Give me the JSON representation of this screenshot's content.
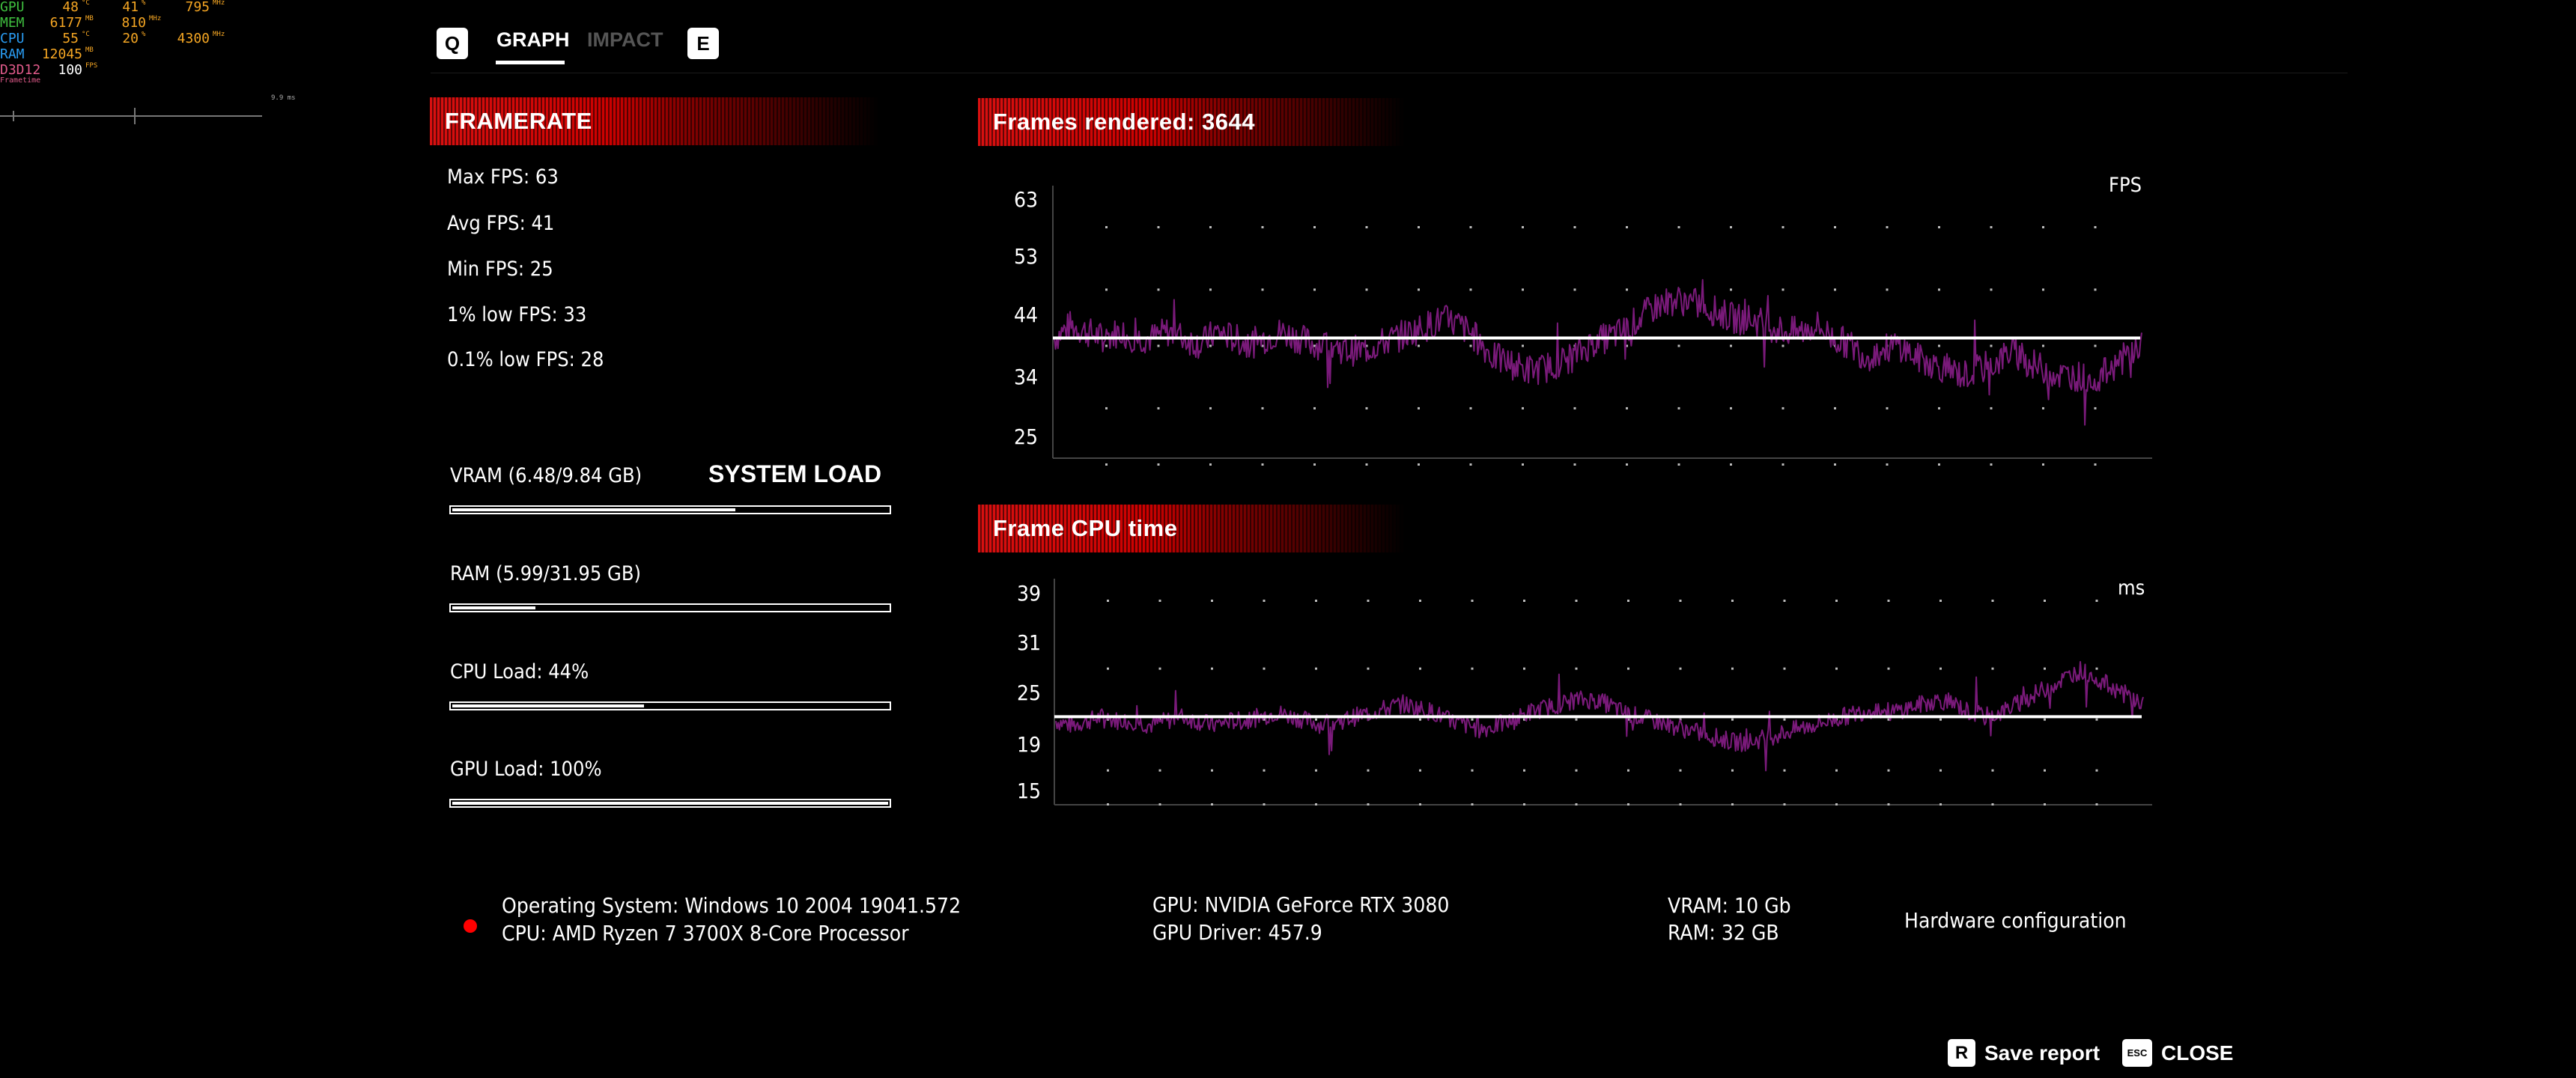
{
  "overlay": {
    "rows": [
      {
        "label": "GPU",
        "label_color": "#3fbf3f",
        "values": [
          {
            "v": "48",
            "u": "°C"
          },
          {
            "v": "41",
            "u": "%"
          },
          {
            "v": "795",
            "u": "MHz"
          }
        ]
      },
      {
        "label": "MEM",
        "label_color": "#3fbf3f",
        "values": [
          {
            "v": "6177",
            "u": "MB"
          },
          {
            "v": "810",
            "u": "MHz"
          }
        ]
      },
      {
        "label": "CPU",
        "label_color": "#2a9df4",
        "values": [
          {
            "v": "55",
            "u": "°C"
          },
          {
            "v": "20",
            "u": "%"
          },
          {
            "v": "4300",
            "u": "MHz"
          }
        ]
      },
      {
        "label": "RAM",
        "label_color": "#2a9df4",
        "values": [
          {
            "v": "12045",
            "u": "MB"
          }
        ]
      },
      {
        "label": "D3D12",
        "label_color": "#e05a8a",
        "values": [
          {
            "v": "100",
            "u": "FPS"
          }
        ]
      }
    ],
    "frametime_label": "Frametime",
    "frametime_value": "9.9 ms"
  },
  "tabs": {
    "left_key": "Q",
    "items": [
      {
        "label": "GRAPH",
        "active": true
      },
      {
        "label": "IMPACT",
        "active": false
      }
    ],
    "right_key": "E"
  },
  "framerate": {
    "title": "FRAMERATE",
    "max": "Max FPS: 63",
    "avg": "Avg FPS: 41",
    "min": "Min FPS: 25",
    "low1": "1% low FPS: 33",
    "low01": "0.1% low FPS: 28"
  },
  "system_load": {
    "title": "SYSTEM LOAD",
    "items": [
      {
        "label": "VRAM (6.48/9.84 GB)",
        "fraction": 0.65
      },
      {
        "label": "RAM (5.99/31.95 GB)",
        "fraction": 0.19
      },
      {
        "label": "CPU Load: 44%",
        "fraction": 0.44
      },
      {
        "label": "GPU Load: 100%",
        "fraction": 1.0
      }
    ]
  },
  "fps_chart": {
    "title": "Frames rendered: 3644",
    "unit": "FPS",
    "yticks": [
      "63",
      "53",
      "44",
      "34",
      "25"
    ]
  },
  "cpu_chart": {
    "title": "Frame CPU time",
    "unit": "ms",
    "yticks": [
      "39",
      "31",
      "25",
      "19",
      "15"
    ]
  },
  "chart_data": [
    {
      "type": "line",
      "title": "Frames rendered: 3644",
      "ylabel": "FPS",
      "ylim": [
        25,
        63
      ],
      "yticks": [
        63,
        53,
        44,
        34,
        25
      ],
      "grid": true,
      "average": 41,
      "line_color": "#7a1a7a",
      "series": [
        {
          "values": [
            41,
            43,
            42,
            41,
            42,
            41,
            41,
            42,
            41,
            40,
            42,
            41,
            40,
            41,
            42,
            41,
            40,
            40,
            39,
            39,
            40,
            41,
            42,
            43,
            44,
            43,
            41,
            38,
            37,
            36,
            36,
            37,
            38,
            40,
            41,
            42,
            44,
            46,
            47,
            47,
            46,
            45,
            44,
            44,
            43,
            42,
            42,
            43,
            41,
            40,
            38,
            39,
            40,
            38,
            37,
            36,
            35,
            36,
            37,
            39,
            37,
            36,
            35,
            35,
            34,
            36,
            38,
            40
          ]
        }
      ]
    },
    {
      "type": "line",
      "title": "Frame CPU time",
      "ylabel": "ms",
      "ylim": [
        15,
        39
      ],
      "yticks": [
        39,
        31,
        25,
        19,
        15
      ],
      "grid": true,
      "average": 24.5,
      "line_color": "#7a1a7a",
      "series": [
        {
          "values": [
            24,
            23.5,
            24,
            24.5,
            24,
            24,
            23.5,
            24,
            24.5,
            24,
            23.5,
            24,
            24,
            24.5,
            25,
            24.5,
            24,
            23.5,
            24,
            24.5,
            25,
            25.5,
            26,
            25.5,
            25,
            24,
            23.5,
            23,
            23.5,
            24,
            25,
            25.5,
            26,
            26.5,
            26.5,
            26,
            25,
            24.5,
            24,
            23.5,
            23,
            22.5,
            22,
            21.5,
            21.5,
            22,
            22.5,
            23,
            23.5,
            24,
            24.5,
            25,
            25.5,
            25,
            25.5,
            26,
            26.5,
            26,
            25,
            24.5,
            25,
            26,
            27,
            28,
            29,
            30,
            29,
            28,
            27,
            26
          ]
        }
      ]
    }
  ],
  "system_info": {
    "os": "Operating System: Windows 10 2004 19041.572",
    "cpu": "CPU: AMD Ryzen 7 3700X 8-Core Processor",
    "gpu": "GPU: NVIDIA GeForce RTX 3080",
    "driver": "GPU Driver: 457.9",
    "vram": "VRAM: 10 Gb",
    "ram": "RAM: 32 GB",
    "hw_link": "Hardware configuration"
  },
  "footer": {
    "save_key": "R",
    "save_label": "Save report",
    "close_key": "ESC",
    "close_label": "CLOSE"
  }
}
